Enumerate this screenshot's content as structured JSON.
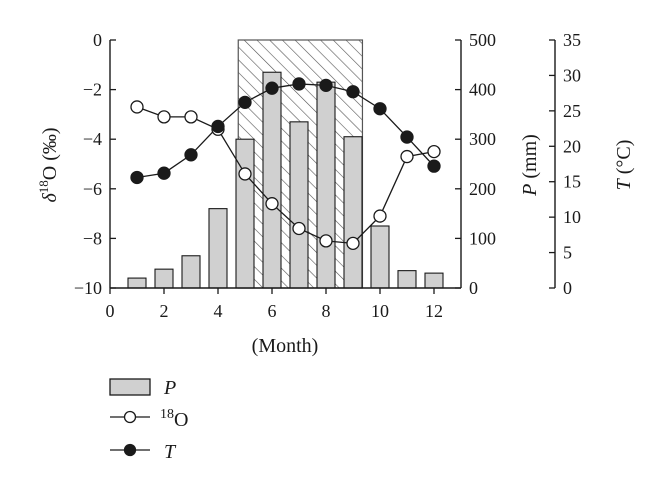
{
  "chart_data": {
    "type": "bar+line",
    "x_axis": {
      "label": "(Month)",
      "range": [
        0,
        13
      ],
      "ticks": [
        0,
        2,
        4,
        6,
        8,
        10,
        12
      ],
      "tick_labels": [
        "0",
        "2",
        "4",
        "6",
        "8",
        "10",
        "12"
      ]
    },
    "y_left": {
      "label_main": "δ",
      "label_sup": "18",
      "label_rest": "O (‰)",
      "range": [
        -10,
        0
      ],
      "ticks": [
        0,
        -2,
        -4,
        -6,
        -8,
        -10
      ],
      "tick_labels": [
        "0",
        "−2",
        "−4",
        "−6",
        "−8",
        "−10"
      ]
    },
    "y_right_p": {
      "label_var": "P",
      "label_unit": " (mm)",
      "range": [
        0,
        500
      ],
      "ticks": [
        0,
        100,
        200,
        300,
        400,
        500
      ],
      "tick_labels": [
        "0",
        "100",
        "200",
        "300",
        "400",
        "500"
      ]
    },
    "y_right_t": {
      "label_var": "T",
      "label_unit": " (°C)",
      "range": [
        0,
        35
      ],
      "ticks": [
        0,
        5,
        10,
        15,
        20,
        25,
        30,
        35
      ],
      "tick_labels": [
        "0",
        "5",
        "10",
        "15",
        "20",
        "25",
        "30",
        "35"
      ]
    },
    "shaded_region": {
      "x_start": 4.75,
      "x_end": 9.35,
      "pattern": "diagonal-hatch"
    },
    "series": [
      {
        "name": "P",
        "kind": "bar",
        "axis": "y_right_p",
        "x": [
          1,
          2,
          3,
          4,
          5,
          6,
          7,
          8,
          9,
          10,
          11,
          12
        ],
        "values": [
          20,
          38,
          65,
          160,
          300,
          435,
          335,
          415,
          305,
          125,
          35,
          30
        ],
        "fill": "#d0d0d0"
      },
      {
        "name": "18O",
        "kind": "line-open-markers",
        "axis": "y_left",
        "x": [
          1,
          2,
          3,
          4,
          5,
          6,
          7,
          8,
          9,
          10,
          11,
          12
        ],
        "values": [
          -2.7,
          -3.1,
          -3.1,
          -3.6,
          -5.4,
          -6.6,
          -7.6,
          -8.1,
          -8.2,
          -7.1,
          -4.7,
          -4.5
        ]
      },
      {
        "name": "T",
        "kind": "line-filled-markers",
        "axis": "y_right_t",
        "x": [
          1,
          2,
          3,
          4,
          5,
          6,
          7,
          8,
          9,
          10,
          11,
          12
        ],
        "values": [
          15.6,
          16.2,
          18.8,
          22.8,
          26.2,
          28.2,
          28.8,
          28.6,
          27.7,
          25.3,
          21.3,
          17.2
        ]
      }
    ],
    "legend": {
      "placement": "bottom-left",
      "items": [
        {
          "label": "P",
          "style": "italic",
          "marker": "bar"
        },
        {
          "label_sup": "18",
          "label": "O",
          "style": "normal",
          "marker": "open-circle"
        },
        {
          "label": "T",
          "style": "italic",
          "marker": "filled-circle"
        }
      ]
    },
    "grid": false,
    "colors": {
      "axis": "#1a1a1a",
      "bar_fill": "#d0d0d0",
      "hatch": "#555555"
    }
  }
}
